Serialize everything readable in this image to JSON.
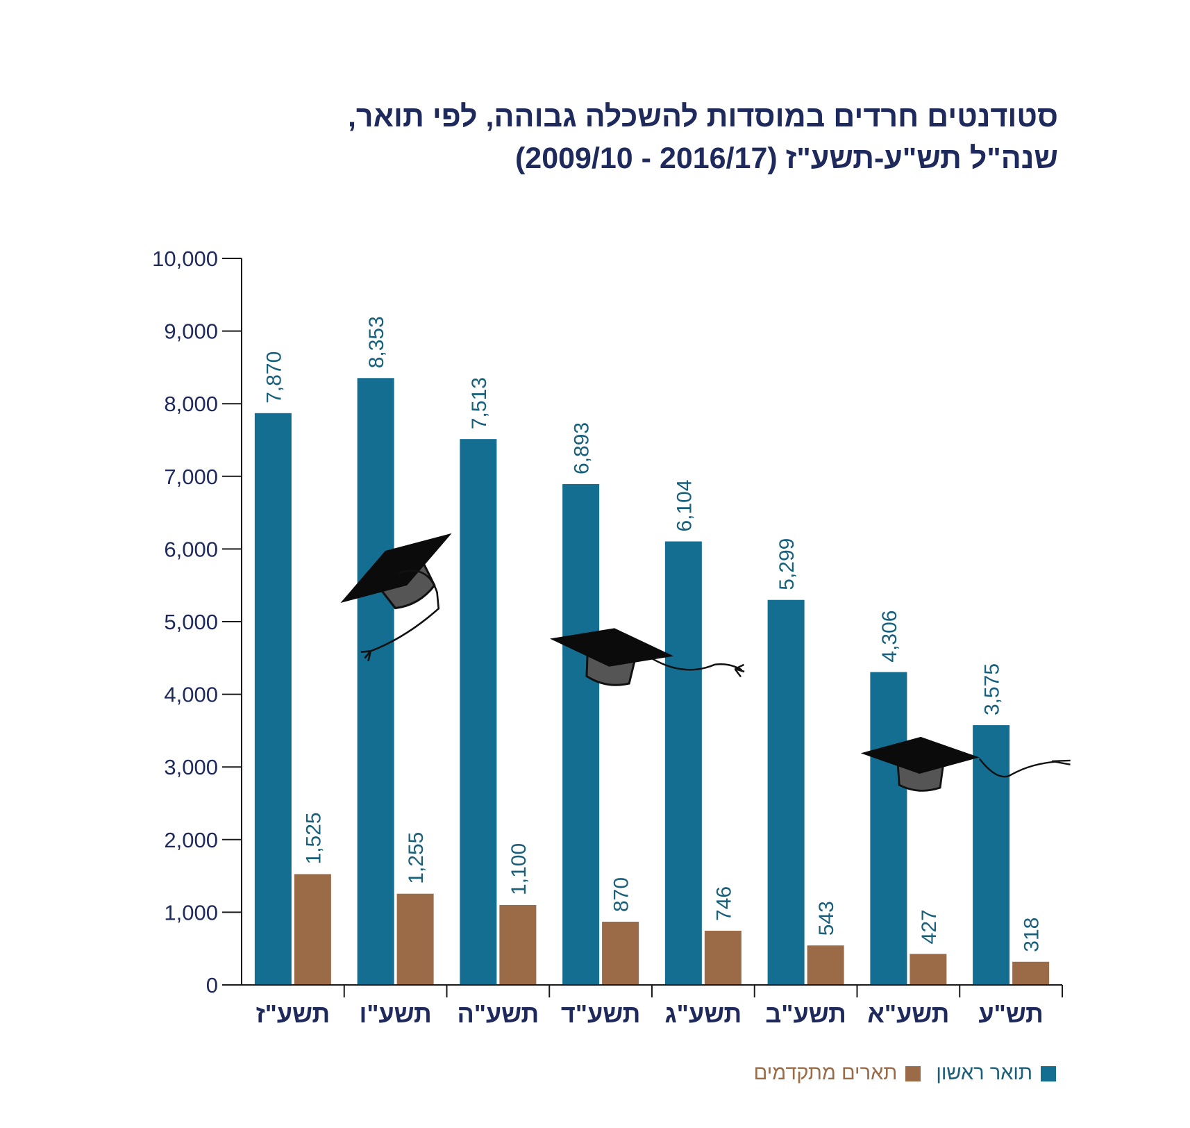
{
  "chart_data": {
    "type": "bar",
    "title_lines": [
      "סטודנטים חרדים במוסדות להשכלה גבוהה, לפי תואר,",
      "שנה\"ל תש\"ע-תשע\"ז (2016/17 - 2009/10)"
    ],
    "categories": [
      "תשע\"ז",
      "תשע\"ו",
      "תשע\"ה",
      "תשע\"ד",
      "תשע\"ג",
      "תשע\"ב",
      "תשע\"א",
      "תש\"ע"
    ],
    "series": [
      {
        "name": "תואר ראשון",
        "color": "#136e92",
        "values": [
          7870,
          8353,
          7513,
          6893,
          6104,
          5299,
          4306,
          3575
        ],
        "labels": [
          "7,870",
          "8,353",
          "7,513",
          "6,893",
          "6,104",
          "5,299",
          "4,306",
          "3,575"
        ]
      },
      {
        "name": "תארים מתקדמים",
        "color": "#9b6a47",
        "values": [
          1525,
          1255,
          1100,
          870,
          746,
          543,
          427,
          318
        ],
        "labels": [
          "1,525",
          "1,255",
          "1,100",
          "870",
          "746",
          "543",
          "427",
          "318"
        ]
      }
    ],
    "ylim": [
      0,
      10000
    ],
    "yticks": [
      0,
      1000,
      2000,
      3000,
      4000,
      5000,
      6000,
      7000,
      8000,
      9000,
      10000
    ],
    "ytick_labels": [
      "0",
      "1,000",
      "2,000",
      "3,000",
      "4,000",
      "5,000",
      "6,000",
      "7,000",
      "8,000",
      "9,000",
      "10,000"
    ],
    "legend_position": "bottom-right",
    "grid": false,
    "decorations": [
      "graduation-cap-icon",
      "graduation-cap-icon",
      "graduation-cap-icon",
      "graduation-cap-icon"
    ]
  }
}
